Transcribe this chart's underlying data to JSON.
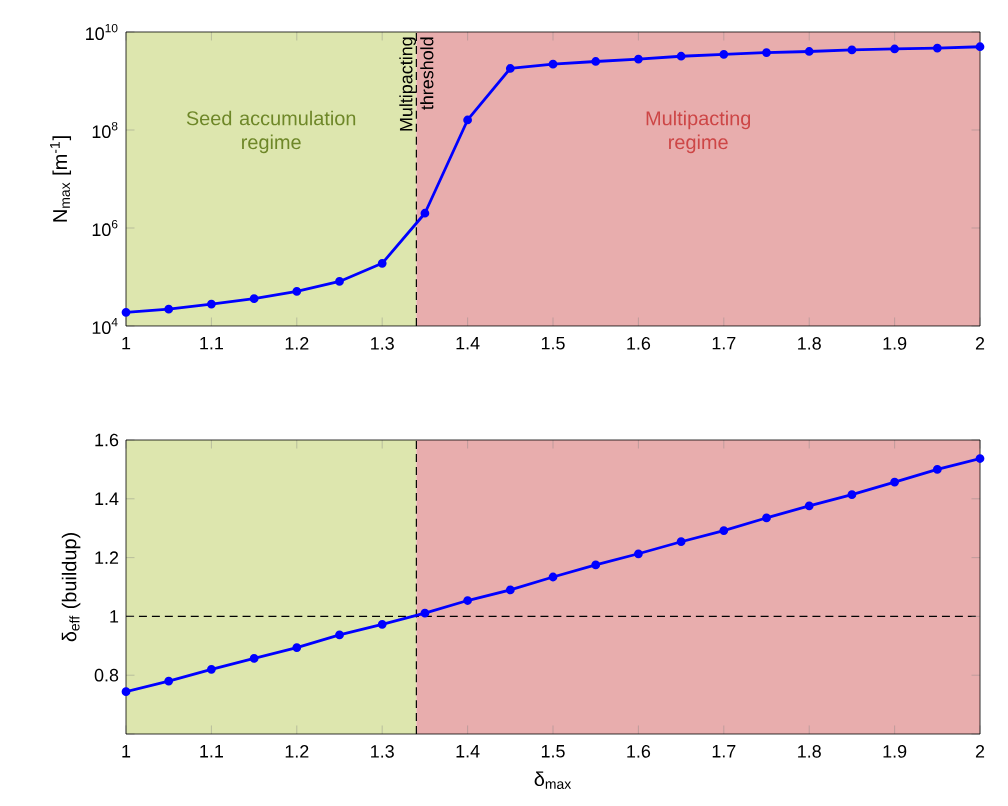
{
  "chart_data": [
    {
      "type": "line",
      "ylabel": "N$_{max}$ [m$^{-1}$]",
      "log": "y",
      "marker": "circle",
      "line_style": "solid",
      "x": [
        1.0,
        1.05,
        1.1,
        1.15,
        1.2,
        1.25,
        1.3,
        1.35,
        1.4,
        1.45,
        1.5,
        1.55,
        1.6,
        1.65,
        1.7,
        1.75,
        1.8,
        1.85,
        1.9,
        1.95,
        2.0
      ],
      "series": [
        {
          "color": "#0000ff",
          "values": [
            19000,
            22000,
            28000,
            36000,
            51000,
            81000,
            190000,
            2000000,
            160000000,
            1800000000,
            2200000000,
            2500000000,
            2800000000,
            3200000000,
            3500000000,
            3800000000,
            4000000000,
            4300000000,
            4500000000,
            4700000000,
            5000000000
          ]
        }
      ],
      "xlim": [
        1,
        2
      ],
      "xticks": [
        1,
        1.1,
        1.2,
        1.3,
        1.4,
        1.5,
        1.6,
        1.7,
        1.8,
        1.9,
        2
      ],
      "ylim": [
        10000,
        10000000000
      ],
      "yticks": [
        {
          "value": 10000,
          "label": "10$^{4}$"
        },
        {
          "value": 1000000,
          "label": "10$^{6}$"
        },
        {
          "value": 100000000,
          "label": "10$^{8}$"
        },
        {
          "value": 10000000000,
          "label": "10$^{10}$"
        }
      ],
      "bands": [
        {
          "axis": "x",
          "from": 1,
          "to": 1.34,
          "label": "Seed accumulation regime",
          "color": "#dde6ae"
        },
        {
          "axis": "x",
          "from": 1.34,
          "to": 2,
          "label": "Multipacting regime",
          "color": "#e8adad"
        }
      ],
      "ref_lines": [
        {
          "axis": "x",
          "value": 1.34,
          "label": "Multipacting threshold",
          "line_style": "dashed"
        }
      ],
      "grid": false
    },
    {
      "type": "line",
      "xlabel": "δ$_{max}$",
      "ylabel": "δ$_{eff}$ (buildup)",
      "marker": "circle",
      "line_style": "solid",
      "x": [
        1.0,
        1.05,
        1.1,
        1.15,
        1.2,
        1.25,
        1.3,
        1.35,
        1.4,
        1.45,
        1.5,
        1.55,
        1.6,
        1.65,
        1.7,
        1.75,
        1.8,
        1.85,
        1.9,
        1.95,
        2.0
      ],
      "series": [
        {
          "color": "#0000ff",
          "values": [
            0.744,
            0.78,
            0.82,
            0.857,
            0.894,
            0.937,
            0.973,
            1.011,
            1.054,
            1.09,
            1.134,
            1.175,
            1.213,
            1.254,
            1.292,
            1.335,
            1.376,
            1.414,
            1.457,
            1.5,
            1.537
          ]
        }
      ],
      "xlim": [
        1,
        2
      ],
      "xticks": [
        1,
        1.1,
        1.2,
        1.3,
        1.4,
        1.5,
        1.6,
        1.7,
        1.8,
        1.9,
        2
      ],
      "ylim": [
        0.6,
        1.6
      ],
      "yticks": [
        {
          "value": 0.6,
          "label": null
        },
        0.8,
        1,
        1.2,
        1.4,
        1.6
      ],
      "bands": [
        {
          "axis": "x",
          "from": 1,
          "to": 1.34,
          "color": "#dde6ae"
        },
        {
          "axis": "x",
          "from": 1.34,
          "to": 2,
          "color": "#e8adad"
        }
      ],
      "ref_lines": [
        {
          "axis": "x",
          "value": 1.34,
          "line_style": "dashed"
        },
        {
          "axis": "y",
          "value": 1,
          "line_style": "dashed"
        }
      ],
      "grid": false
    }
  ]
}
